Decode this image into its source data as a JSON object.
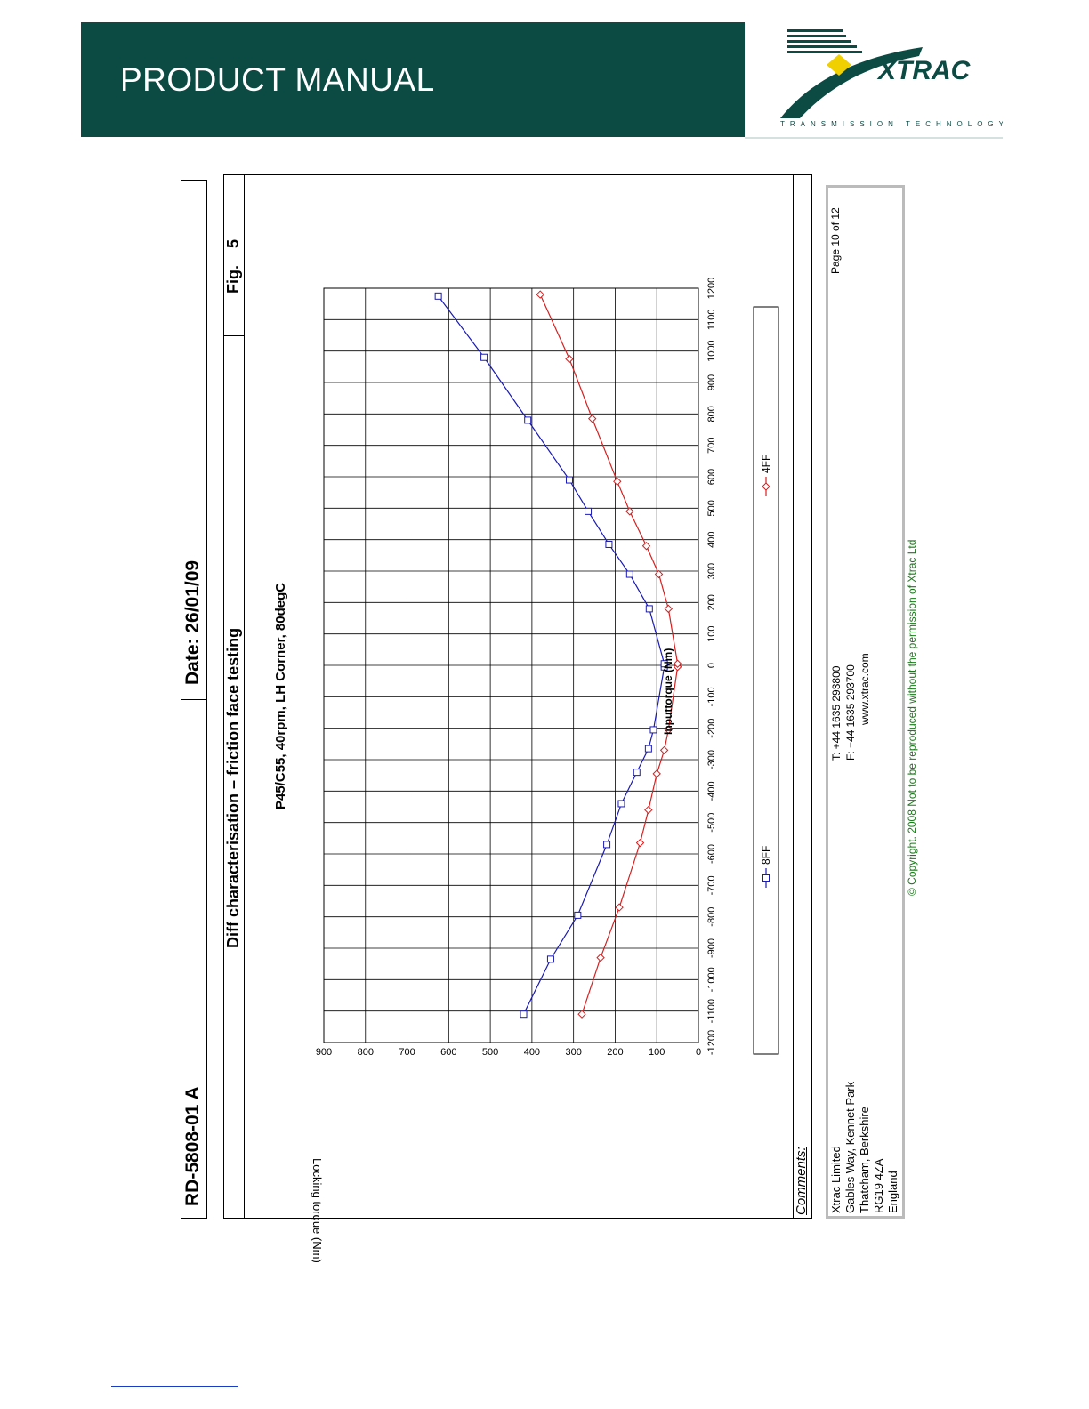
{
  "header": {
    "banner_title": "PRODUCT MANUAL",
    "logo_text": "XTRAC",
    "logo_tagline": "TRANSMISSION TECHNOLOGY",
    "banner_color": "#0c4a44",
    "logo_accent": "#f0d000"
  },
  "sheet": {
    "doc_number": "RD-5808-01 A",
    "date": "Date: 26/01/09",
    "test_title": "Diff characterisation – friction face testing",
    "fig_label": "Fig.",
    "fig_number": "5",
    "comments_label": "Comments:"
  },
  "footer": {
    "address": [
      "Xtrac Limited",
      "Gables Way, Kennet Park",
      "Thatcham, Berkshire",
      "RG19 4ZA",
      "England"
    ],
    "phone": "T: +44 1635 293800",
    "fax": "F: +44 1635 293700",
    "web": "www.xtrac.com",
    "page": "Page 10 of 12",
    "copyright": "© Copyright. 2008 Not to be reproduced without the permission of Xtrac Ltd"
  },
  "chart_data": {
    "type": "line",
    "title": "P45/C55, 40rpm, LH Corner, 80degC",
    "xlabel": "Inputtorque (Nm)",
    "ylabel": "Locking torque (Nm)",
    "xlim": [
      -1200,
      1200
    ],
    "ylim": [
      0,
      900
    ],
    "x_ticks": [
      -1200,
      -1100,
      -1000,
      -900,
      -800,
      -700,
      -600,
      -500,
      -400,
      -300,
      -200,
      -100,
      0,
      100,
      200,
      300,
      400,
      500,
      600,
      700,
      800,
      900,
      1000,
      1100,
      1200
    ],
    "y_ticks": [
      0,
      100,
      200,
      300,
      400,
      500,
      600,
      700,
      800,
      900
    ],
    "grid": true,
    "legend_position": "bottom",
    "series": [
      {
        "name": "8FF",
        "color": "#1a1ab4",
        "marker": "square",
        "x": [
          -1110,
          -935,
          -795,
          -570,
          -440,
          -340,
          -265,
          -205,
          -5,
          5,
          180,
          290,
          385,
          490,
          590,
          780,
          980,
          1175
        ],
        "y": [
          420,
          355,
          290,
          220,
          185,
          148,
          120,
          108,
          82,
          82,
          118,
          165,
          215,
          265,
          310,
          410,
          515,
          625
        ]
      },
      {
        "name": "4FF",
        "color": "#d42020",
        "marker": "diamond",
        "x": [
          -1110,
          -930,
          -770,
          -565,
          -460,
          -345,
          -270,
          -205,
          -5,
          5,
          180,
          290,
          380,
          490,
          585,
          785,
          975,
          1180
        ],
        "y": [
          280,
          235,
          190,
          140,
          120,
          100,
          82,
          72,
          50,
          50,
          72,
          95,
          125,
          165,
          195,
          255,
          310,
          380
        ]
      }
    ]
  }
}
